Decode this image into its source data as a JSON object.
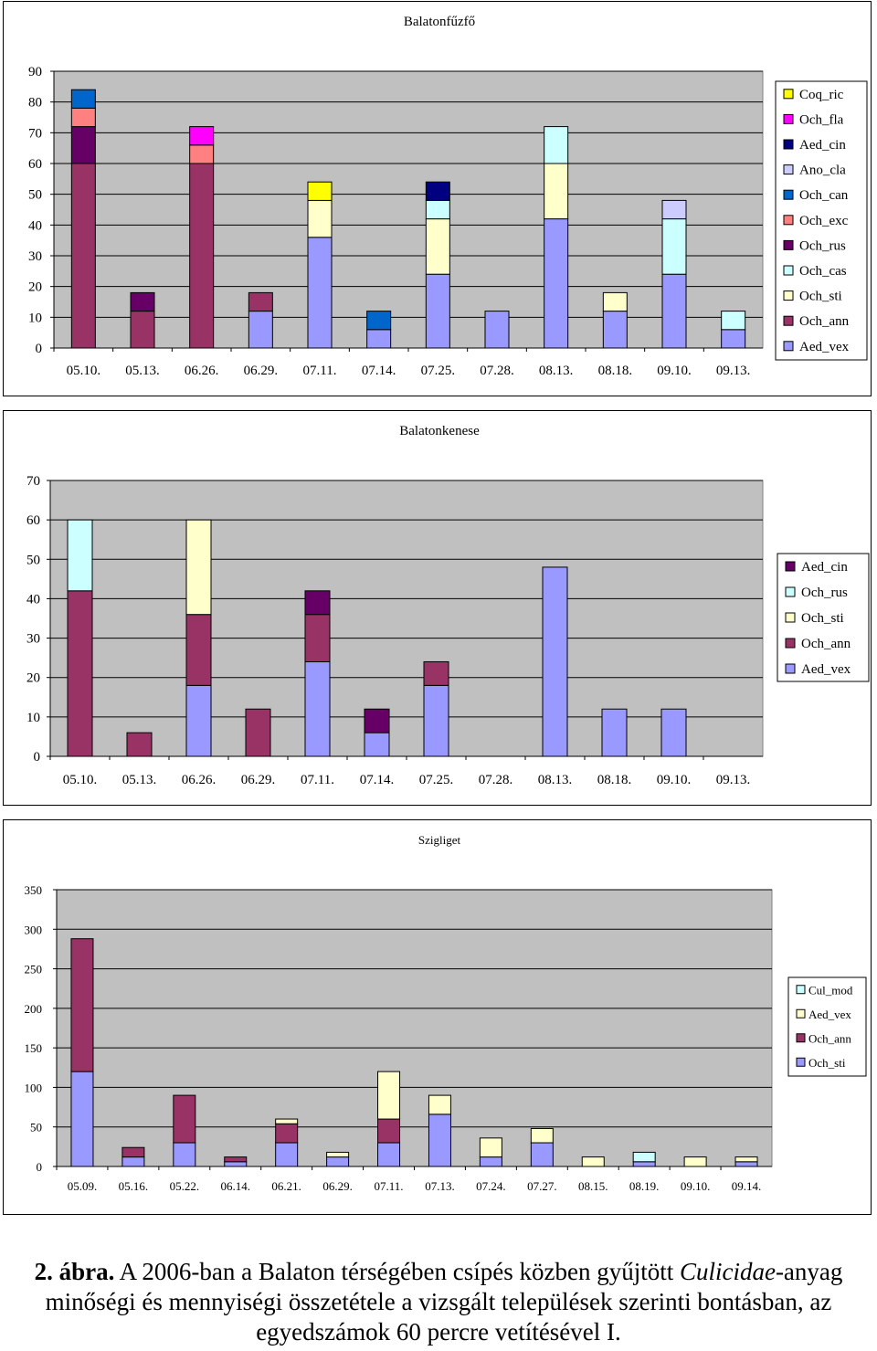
{
  "chart_data": [
    {
      "type": "bar",
      "stacked": true,
      "title": "Balatonfűzfő",
      "categories": [
        "05.10.",
        "05.13.",
        "06.26.",
        "06.29.",
        "07.11.",
        "07.14.",
        "07.25.",
        "07.28.",
        "08.13.",
        "08.18.",
        "09.10.",
        "09.13."
      ],
      "ylim": [
        0,
        90
      ],
      "yticks": [
        0,
        10,
        20,
        30,
        40,
        50,
        60,
        70,
        80,
        90
      ],
      "legend_position": "right",
      "series": [
        {
          "name": "Aed_vex",
          "color": "#9999ff",
          "values": [
            0,
            0,
            0,
            12,
            36,
            6,
            24,
            12,
            42,
            12,
            24,
            6
          ]
        },
        {
          "name": "Och_ann",
          "color": "#993366",
          "values": [
            60,
            12,
            60,
            6,
            0,
            0,
            0,
            0,
            0,
            0,
            0,
            0
          ]
        },
        {
          "name": "Och_sti",
          "color": "#ffffcc",
          "values": [
            0,
            0,
            0,
            0,
            12,
            0,
            18,
            0,
            18,
            6,
            0,
            0
          ]
        },
        {
          "name": "Och_cas",
          "color": "#ccffff",
          "values": [
            0,
            0,
            0,
            0,
            0,
            0,
            6,
            0,
            12,
            0,
            18,
            6
          ]
        },
        {
          "name": "Och_rus",
          "color": "#660066",
          "values": [
            12,
            6,
            0,
            0,
            0,
            0,
            0,
            0,
            0,
            0,
            0,
            0
          ]
        },
        {
          "name": "Och_exc",
          "color": "#ff8080",
          "values": [
            6,
            0,
            6,
            0,
            0,
            0,
            0,
            0,
            0,
            0,
            0,
            0
          ]
        },
        {
          "name": "Och_can",
          "color": "#0066cc",
          "values": [
            6,
            0,
            0,
            0,
            0,
            6,
            0,
            0,
            0,
            0,
            0,
            0
          ]
        },
        {
          "name": "Ano_cla",
          "color": "#ccccff",
          "values": [
            0,
            0,
            0,
            0,
            0,
            0,
            0,
            0,
            0,
            0,
            6,
            0
          ]
        },
        {
          "name": "Aed_cin",
          "color": "#000080",
          "values": [
            0,
            0,
            0,
            0,
            0,
            0,
            6,
            0,
            0,
            0,
            0,
            0
          ]
        },
        {
          "name": "Och_fla",
          "color": "#ff00ff",
          "values": [
            0,
            0,
            6,
            0,
            0,
            0,
            0,
            0,
            0,
            0,
            0,
            0
          ]
        },
        {
          "name": "Coq_ric",
          "color": "#ffff00",
          "values": [
            0,
            0,
            0,
            0,
            6,
            0,
            0,
            0,
            0,
            0,
            0,
            0
          ]
        }
      ]
    },
    {
      "type": "bar",
      "stacked": true,
      "title": "Balatonkenese",
      "categories": [
        "05.10.",
        "05.13.",
        "06.26.",
        "06.29.",
        "07.11.",
        "07.14.",
        "07.25.",
        "07.28.",
        "08.13.",
        "08.18.",
        "09.10.",
        "09.13."
      ],
      "ylim": [
        0,
        70
      ],
      "yticks": [
        0,
        10,
        20,
        30,
        40,
        50,
        60,
        70
      ],
      "legend_position": "right",
      "series": [
        {
          "name": "Aed_vex",
          "color": "#9999ff",
          "values": [
            0,
            0,
            18,
            0,
            24,
            6,
            18,
            0,
            48,
            12,
            12,
            0
          ]
        },
        {
          "name": "Och_ann",
          "color": "#993366",
          "values": [
            42,
            6,
            18,
            12,
            12,
            0,
            6,
            0,
            0,
            0,
            0,
            0
          ]
        },
        {
          "name": "Och_sti",
          "color": "#ffffcc",
          "values": [
            0,
            0,
            24,
            0,
            0,
            0,
            0,
            0,
            0,
            0,
            0,
            0
          ]
        },
        {
          "name": "Och_rus",
          "color": "#ccffff",
          "values": [
            18,
            0,
            0,
            0,
            0,
            0,
            0,
            0,
            0,
            0,
            0,
            0
          ]
        },
        {
          "name": "Aed_cin",
          "color": "#660066",
          "values": [
            0,
            0,
            0,
            0,
            6,
            6,
            0,
            0,
            0,
            0,
            0,
            0
          ]
        }
      ]
    },
    {
      "type": "bar",
      "stacked": true,
      "title": "Szigliget",
      "categories": [
        "05.09.",
        "05.16.",
        "05.22.",
        "06.14.",
        "06.21.",
        "06.29.",
        "07.11.",
        "07.13.",
        "07.24.",
        "07.27.",
        "08.15.",
        "08.19.",
        "09.10.",
        "09.14."
      ],
      "ylim": [
        0,
        350
      ],
      "yticks": [
        0,
        50,
        100,
        150,
        200,
        250,
        300,
        350
      ],
      "legend_position": "right",
      "series": [
        {
          "name": "Och_sti",
          "color": "#9999ff",
          "values": [
            120,
            12,
            30,
            6,
            30,
            12,
            30,
            66,
            12,
            30,
            0,
            6,
            0,
            6
          ]
        },
        {
          "name": "Och_ann",
          "color": "#993366",
          "values": [
            168,
            12,
            60,
            6,
            24,
            0,
            30,
            0,
            0,
            0,
            0,
            0,
            0,
            0
          ]
        },
        {
          "name": "Aed_vex",
          "color": "#ffffcc",
          "values": [
            0,
            0,
            0,
            0,
            6,
            6,
            60,
            24,
            24,
            18,
            12,
            0,
            12,
            6
          ]
        },
        {
          "name": "Cul_mod",
          "color": "#ccffff",
          "values": [
            0,
            0,
            0,
            0,
            0,
            0,
            0,
            0,
            0,
            0,
            0,
            12,
            0,
            0
          ]
        }
      ]
    }
  ],
  "caption": {
    "label": "2. ábra.",
    "text_before": " A 2006-ban a Balaton térségében csípés közben gyűjtött ",
    "taxon": "Culicidae",
    "text_after": "-anyag minőségi és mennyiségi összetétele a vizsgált települések szerinti bontásban, az egyedszámok 60 percre vetítésével I."
  }
}
